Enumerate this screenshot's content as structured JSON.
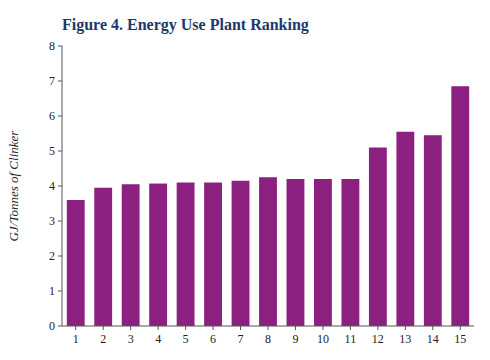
{
  "chart_data": {
    "type": "bar",
    "title": "Figure 4. Energy Use Plant Ranking",
    "ylabel": "GJ/Tonnes of Clinker",
    "categories": [
      1,
      2,
      3,
      4,
      5,
      6,
      7,
      8,
      9,
      10,
      11,
      12,
      13,
      14,
      15
    ],
    "values": [
      3.6,
      3.95,
      4.05,
      4.07,
      4.1,
      4.1,
      4.15,
      4.25,
      4.2,
      4.2,
      4.2,
      5.1,
      5.55,
      5.45,
      6.85
    ],
    "color": "#8B2080",
    "ylim": [
      0,
      8
    ],
    "yticks": [
      0,
      1,
      2,
      3,
      4,
      5,
      6,
      7,
      8
    ],
    "grid": false
  }
}
